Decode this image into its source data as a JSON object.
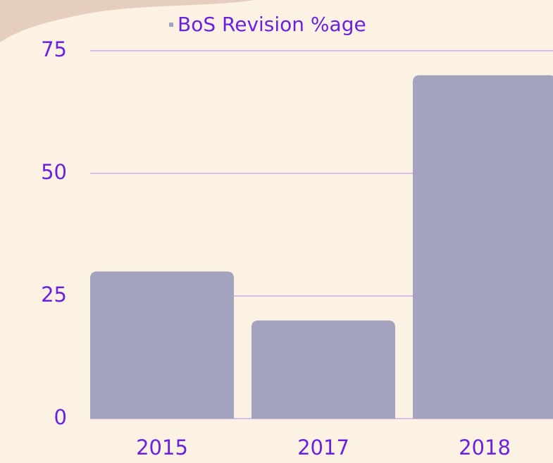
{
  "chart_data": {
    "type": "bar",
    "categories": [
      "2015",
      "2017",
      "2018"
    ],
    "series": [
      {
        "name": "BoS Revision %age",
        "color": "#a3a2bf",
        "values": [
          30,
          20,
          70
        ]
      }
    ],
    "ylim": [
      0,
      75
    ],
    "yticks": [
      0,
      25,
      50,
      75
    ],
    "grid": true,
    "grid_color": "#c9a9ea"
  }
}
